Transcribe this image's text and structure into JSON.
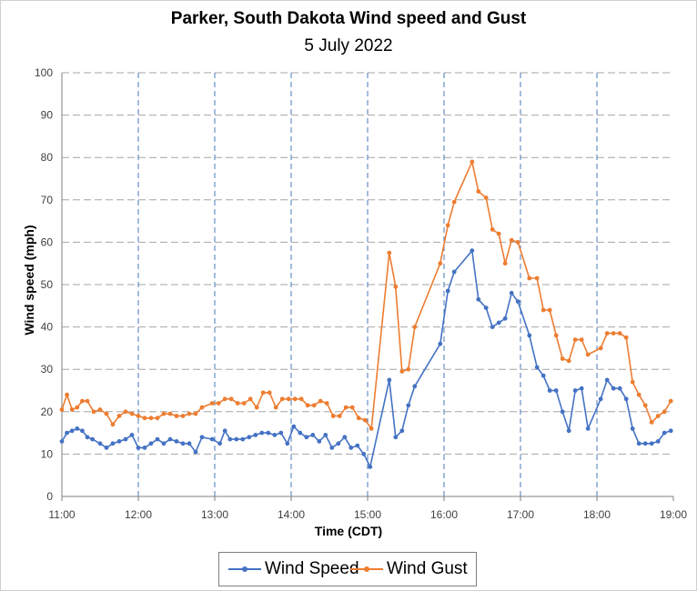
{
  "chart_data": {
    "type": "line",
    "title": "Parker, South Dakota Wind speed and Gust",
    "subtitle": "5 July 2022",
    "xlabel": "Time (CDT)",
    "ylabel": "Wind speed (mph)",
    "ylim": [
      0,
      100
    ],
    "xlim": [
      "11:00",
      "19:00"
    ],
    "x_ticks": [
      "11:00",
      "12:00",
      "13:00",
      "14:00",
      "15:00",
      "16:00",
      "17:00",
      "18:00",
      "19:00"
    ],
    "y_ticks": [
      "0",
      "10",
      "20",
      "30",
      "40",
      "50",
      "60",
      "70",
      "80",
      "90",
      "100"
    ],
    "grid": true,
    "legend_position": "bottom",
    "series": [
      {
        "name": "Wind Speed",
        "color": "#4472C4",
        "points": [
          [
            "11:00",
            13
          ],
          [
            "11:04",
            15
          ],
          [
            "11:08",
            15.5
          ],
          [
            "11:12",
            16
          ],
          [
            "11:16",
            15.5
          ],
          [
            "11:20",
            14
          ],
          [
            "11:24",
            13.5
          ],
          [
            "11:30",
            12.5
          ],
          [
            "11:35",
            11.5
          ],
          [
            "11:40",
            12.5
          ],
          [
            "11:45",
            13
          ],
          [
            "11:50",
            13.5
          ],
          [
            "11:55",
            14.5
          ],
          [
            "12:00",
            11.5
          ],
          [
            "12:05",
            11.5
          ],
          [
            "12:10",
            12.5
          ],
          [
            "12:15",
            13.5
          ],
          [
            "12:20",
            12.5
          ],
          [
            "12:25",
            13.5
          ],
          [
            "12:30",
            13
          ],
          [
            "12:35",
            12.5
          ],
          [
            "12:40",
            12.5
          ],
          [
            "12:45",
            10.5
          ],
          [
            "12:50",
            14
          ],
          [
            "12:58",
            13.5
          ],
          [
            "13:04",
            12.5
          ],
          [
            "13:08",
            15.5
          ],
          [
            "13:12",
            13.5
          ],
          [
            "13:17",
            13.5
          ],
          [
            "13:22",
            13.5
          ],
          [
            "13:27",
            14
          ],
          [
            "13:32",
            14.5
          ],
          [
            "13:37",
            15
          ],
          [
            "13:42",
            15
          ],
          [
            "13:47",
            14.5
          ],
          [
            "13:52",
            15
          ],
          [
            "13:57",
            12.5
          ],
          [
            "14:02",
            16.5
          ],
          [
            "14:07",
            15
          ],
          [
            "14:12",
            14
          ],
          [
            "14:17",
            14.5
          ],
          [
            "14:22",
            13
          ],
          [
            "14:27",
            14.5
          ],
          [
            "14:32",
            11.5
          ],
          [
            "14:37",
            12.5
          ],
          [
            "14:42",
            14
          ],
          [
            "14:47",
            11.5
          ],
          [
            "14:52",
            12
          ],
          [
            "14:57",
            10
          ],
          [
            "15:02",
            7
          ],
          [
            "15:17",
            27.5
          ],
          [
            "15:22",
            14
          ],
          [
            "15:27",
            15.5
          ],
          [
            "15:32",
            21.5
          ],
          [
            "15:37",
            26
          ],
          [
            "15:57",
            36
          ],
          [
            "16:03",
            48.5
          ],
          [
            "16:08",
            53
          ],
          [
            "16:22",
            58
          ],
          [
            "16:27",
            46.5
          ],
          [
            "16:33",
            44.5
          ],
          [
            "16:38",
            40
          ],
          [
            "16:43",
            41
          ],
          [
            "16:48",
            42
          ],
          [
            "16:53",
            48
          ],
          [
            "16:58",
            46
          ],
          [
            "17:07",
            38
          ],
          [
            "17:13",
            30.5
          ],
          [
            "17:18",
            28.5
          ],
          [
            "17:23",
            25
          ],
          [
            "17:28",
            25
          ],
          [
            "17:33",
            20
          ],
          [
            "17:38",
            15.5
          ],
          [
            "17:43",
            25
          ],
          [
            "17:48",
            25.5
          ],
          [
            "17:53",
            16
          ],
          [
            "18:03",
            23
          ],
          [
            "18:08",
            27.5
          ],
          [
            "18:13",
            25.5
          ],
          [
            "18:18",
            25.5
          ],
          [
            "18:23",
            23
          ],
          [
            "18:28",
            16
          ],
          [
            "18:33",
            12.5
          ],
          [
            "18:38",
            12.5
          ],
          [
            "18:43",
            12.5
          ],
          [
            "18:48",
            13
          ],
          [
            "18:53",
            15
          ],
          [
            "18:58",
            15.5
          ]
        ]
      },
      {
        "name": "Wind Gust",
        "color": "#ED7D31",
        "points": [
          [
            "11:00",
            20.5
          ],
          [
            "11:04",
            24
          ],
          [
            "11:08",
            20.5
          ],
          [
            "11:12",
            21
          ],
          [
            "11:16",
            22.5
          ],
          [
            "11:20",
            22.5
          ],
          [
            "11:25",
            20
          ],
          [
            "11:30",
            20.5
          ],
          [
            "11:35",
            19.5
          ],
          [
            "11:40",
            17
          ],
          [
            "11:45",
            19
          ],
          [
            "11:50",
            20
          ],
          [
            "11:55",
            19.5
          ],
          [
            "12:00",
            19
          ],
          [
            "12:05",
            18.5
          ],
          [
            "12:10",
            18.5
          ],
          [
            "12:15",
            18.5
          ],
          [
            "12:20",
            19.5
          ],
          [
            "12:25",
            19.5
          ],
          [
            "12:30",
            19
          ],
          [
            "12:35",
            19
          ],
          [
            "12:40",
            19.5
          ],
          [
            "12:45",
            19.5
          ],
          [
            "12:50",
            21
          ],
          [
            "12:58",
            22
          ],
          [
            "13:03",
            22
          ],
          [
            "13:08",
            23
          ],
          [
            "13:13",
            23
          ],
          [
            "13:18",
            22
          ],
          [
            "13:23",
            22
          ],
          [
            "13:28",
            23
          ],
          [
            "13:33",
            21
          ],
          [
            "13:38",
            24.5
          ],
          [
            "13:43",
            24.5
          ],
          [
            "13:48",
            21
          ],
          [
            "13:53",
            23
          ],
          [
            "13:58",
            23
          ],
          [
            "14:03",
            23
          ],
          [
            "14:08",
            23
          ],
          [
            "14:13",
            21.5
          ],
          [
            "14:18",
            21.5
          ],
          [
            "14:23",
            22.5
          ],
          [
            "14:28",
            22
          ],
          [
            "14:33",
            19
          ],
          [
            "14:38",
            19
          ],
          [
            "14:43",
            21
          ],
          [
            "14:48",
            21
          ],
          [
            "14:53",
            18.5
          ],
          [
            "14:58",
            18
          ],
          [
            "15:03",
            16
          ],
          [
            "15:17",
            57.5
          ],
          [
            "15:22",
            49.5
          ],
          [
            "15:27",
            29.5
          ],
          [
            "15:32",
            30
          ],
          [
            "15:37",
            40
          ],
          [
            "15:57",
            55
          ],
          [
            "16:03",
            64
          ],
          [
            "16:08",
            69.5
          ],
          [
            "16:22",
            79
          ],
          [
            "16:27",
            72
          ],
          [
            "16:33",
            70.5
          ],
          [
            "16:38",
            63
          ],
          [
            "16:43",
            62
          ],
          [
            "16:48",
            55
          ],
          [
            "16:53",
            60.5
          ],
          [
            "16:58",
            60
          ],
          [
            "17:07",
            51.5
          ],
          [
            "17:13",
            51.5
          ],
          [
            "17:18",
            44
          ],
          [
            "17:23",
            44
          ],
          [
            "17:28",
            38
          ],
          [
            "17:33",
            32.5
          ],
          [
            "17:38",
            32
          ],
          [
            "17:43",
            37
          ],
          [
            "17:48",
            37
          ],
          [
            "17:53",
            33.5
          ],
          [
            "18:03",
            35
          ],
          [
            "18:08",
            38.5
          ],
          [
            "18:13",
            38.5
          ],
          [
            "18:18",
            38.5
          ],
          [
            "18:23",
            37.5
          ],
          [
            "18:28",
            27
          ],
          [
            "18:33",
            24
          ],
          [
            "18:38",
            21.5
          ],
          [
            "18:43",
            17.5
          ],
          [
            "18:48",
            19
          ],
          [
            "18:53",
            20
          ],
          [
            "18:58",
            22.5
          ]
        ]
      }
    ]
  }
}
